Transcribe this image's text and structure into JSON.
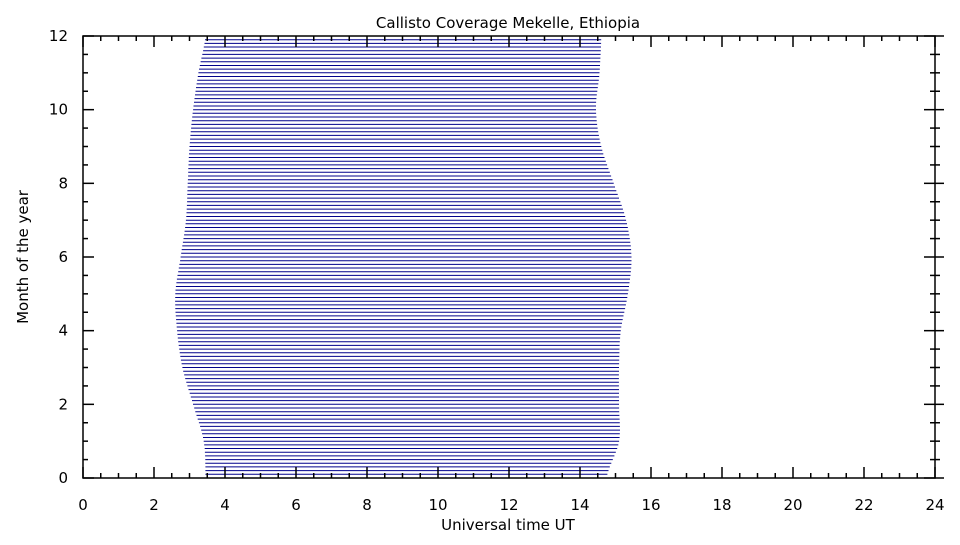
{
  "chart_data": {
    "type": "bar",
    "title": "Callisto Coverage Mekelle, Ethiopia",
    "xlabel": "Universal time UT",
    "ylabel": "Month of the year",
    "xlim": [
      0,
      24
    ],
    "ylim": [
      0,
      12
    ],
    "xticks": [
      "0",
      "2",
      "4",
      "6",
      "8",
      "10",
      "12",
      "14",
      "16",
      "18",
      "20",
      "22",
      "24"
    ],
    "yticks": [
      "0",
      "2",
      "4",
      "6",
      "8",
      "10",
      "12"
    ],
    "grid": false,
    "line_color": "#00008b",
    "line_step_months": 0.1,
    "coverage_start_ut": [
      [
        0,
        3.45
      ],
      [
        1,
        3.4
      ],
      [
        2,
        3.1
      ],
      [
        3,
        2.8
      ],
      [
        4,
        2.65
      ],
      [
        5,
        2.6
      ],
      [
        6,
        2.75
      ],
      [
        7,
        2.9
      ],
      [
        8,
        2.95
      ],
      [
        9,
        3.0
      ],
      [
        10,
        3.1
      ],
      [
        11,
        3.25
      ],
      [
        12,
        3.45
      ]
    ],
    "coverage_end_ut": [
      [
        0,
        14.75
      ],
      [
        1,
        15.1
      ],
      [
        2,
        15.1
      ],
      [
        3,
        15.1
      ],
      [
        4,
        15.15
      ],
      [
        5,
        15.35
      ],
      [
        6,
        15.45
      ],
      [
        7,
        15.3
      ],
      [
        8,
        14.95
      ],
      [
        9,
        14.6
      ],
      [
        10,
        14.45
      ],
      [
        11,
        14.55
      ],
      [
        12,
        14.6
      ]
    ]
  }
}
